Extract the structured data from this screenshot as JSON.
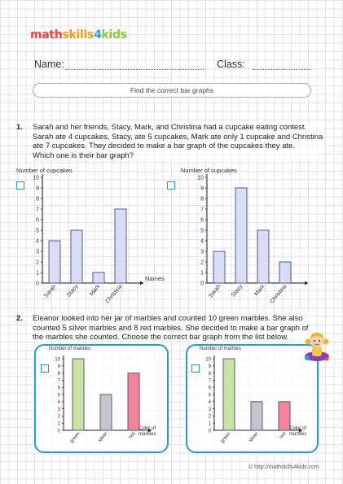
{
  "brand": {
    "part1": "math",
    "part2": "skills",
    "part3": "4",
    "part4": "kids"
  },
  "header": {
    "name_label": "Name:",
    "class_label": "Class:"
  },
  "instruction": "Find the correct bar graphs",
  "q1": {
    "number": "1.",
    "lines": [
      "Sarah and her friends, Stacy, Mark, and Christina had a cupcake eating contest.",
      "Sarah ate 4 cupcakes, Stacy, ate 5 cupcakes, Mark ate only 1 cupcake and Christina",
      "ate 7 cupcakes. They decided to make a bar graph of the cupcakes they ate.",
      "Which one is their bar graph?"
    ]
  },
  "q2": {
    "number": "2.",
    "lines": [
      "Eleanor looked into her jar of marbles and counted 10 green marbles. She also",
      "counted 5 silver marbles and 8 red marbles. She decided to make a bar graph of",
      "the marbles she counted. Choose the correct bar graph from the list below."
    ]
  },
  "colors": {
    "accent": "#2a9ad4",
    "bar_q1": "#d8dcf5",
    "green": "#c9e3a0",
    "silver": "#c6c6c6",
    "red": "#f2859a"
  },
  "chart_data": [
    {
      "type": "bar",
      "title": "",
      "ylabel": "Number of cupcakes",
      "xlabel": "Names",
      "categories": [
        "Sarah",
        "Stacy",
        "Mark",
        "Christina"
      ],
      "values": [
        4,
        5,
        1,
        7
      ],
      "ylim": [
        0,
        10
      ],
      "yticks": [
        "0",
        "1",
        "2",
        "3",
        "4",
        "5",
        "6",
        "7",
        "8",
        "9",
        "10"
      ]
    },
    {
      "type": "bar",
      "title": "",
      "ylabel": "Number of cupcakes",
      "xlabel": "",
      "categories": [
        "Sarah",
        "Stacy",
        "Mark",
        "Christina"
      ],
      "values": [
        3,
        9,
        5,
        2
      ],
      "ylim": [
        0,
        10
      ],
      "yticks": [
        "0",
        "1",
        "2",
        "3",
        "4",
        "5",
        "6",
        "7",
        "8",
        "9",
        "10"
      ]
    },
    {
      "type": "bar",
      "title": "",
      "ylabel": "Number of marbles",
      "xlabel": "Color of marbles",
      "categories": [
        "green",
        "silver",
        "red"
      ],
      "values": [
        10,
        5,
        8
      ],
      "colors": [
        "#c9e3a0",
        "#c6c6c6",
        "#f2859a"
      ],
      "ylim": [
        0,
        10
      ],
      "yticks": [
        "0",
        "1",
        "2",
        "3",
        "4",
        "5",
        "6",
        "7",
        "8",
        "9",
        "10"
      ]
    },
    {
      "type": "bar",
      "title": "",
      "ylabel": "Number of marbles",
      "xlabel": "Color of marbles",
      "categories": [
        "green",
        "silver",
        "red"
      ],
      "values": [
        10,
        4,
        4
      ],
      "colors": [
        "#c9e3a0",
        "#c6c6c6",
        "#f2859a"
      ],
      "ylim": [
        0,
        10
      ],
      "yticks": [
        "0",
        "1",
        "2",
        "3",
        "4",
        "5",
        "6",
        "7",
        "8",
        "9",
        "10"
      ]
    }
  ],
  "footer": "© http://mathskills4kids.com"
}
